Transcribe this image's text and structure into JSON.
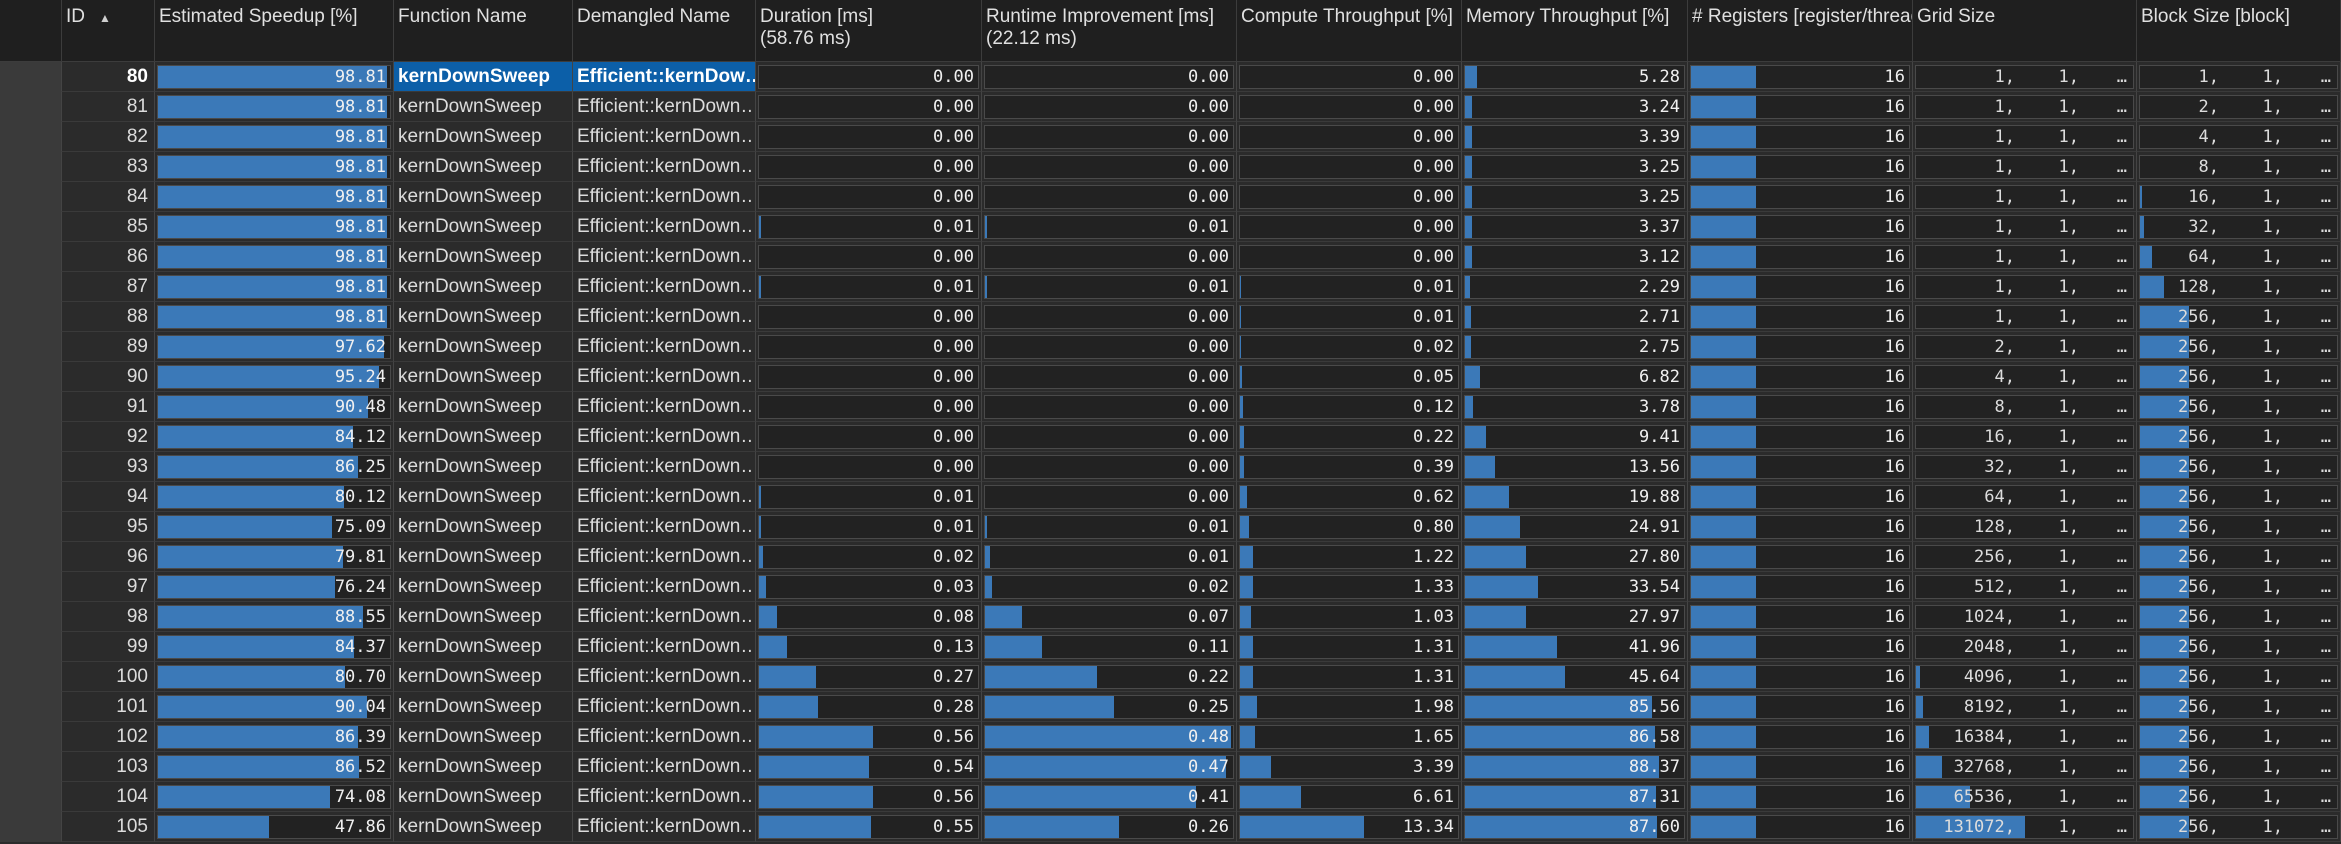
{
  "columns": [
    {
      "key": "id",
      "label": "ID"
    },
    {
      "key": "speedup",
      "label": "Estimated Speedup [%]"
    },
    {
      "key": "fname",
      "label": "Function Name"
    },
    {
      "key": "dname",
      "label": "Demangled Name"
    },
    {
      "key": "duration",
      "label": "Duration [ms]\n(58.76 ms)"
    },
    {
      "key": "runtime",
      "label": "Runtime Improvement [ms]\n(22.12 ms)"
    },
    {
      "key": "compute",
      "label": "Compute Throughput [%]"
    },
    {
      "key": "memory",
      "label": "Memory Throughput [%]"
    },
    {
      "key": "regs",
      "label": "# Registers [register/thread]"
    },
    {
      "key": "grid",
      "label": "Grid Size"
    },
    {
      "key": "block",
      "label": "Block Size [block]"
    }
  ],
  "sort_icon": "sort-ascending-icon",
  "accent": "#3b79b8",
  "selected_color": "#0c5fa8",
  "rows": [
    {
      "id": "80",
      "speedup": "98.81",
      "fname": "kernDownSweep",
      "dname": "Efficient::kernDow…",
      "duration": "0.00",
      "runtime": "0.00",
      "compute": "0.00",
      "memory": "5.28",
      "regs": "16",
      "grid": [
        "1,",
        "1,",
        "…"
      ],
      "block": [
        "1,",
        "1,",
        "…"
      ],
      "fill": {
        "speedup": 0.988,
        "duration": 0.0,
        "runtime": 0.0,
        "compute": 0.0,
        "memory": 0.053,
        "regs": 0.3,
        "grid": 0,
        "block": 0
      },
      "selected": true
    },
    {
      "id": "81",
      "speedup": "98.81",
      "fname": "kernDownSweep",
      "dname": "Efficient::kernDown…",
      "duration": "0.00",
      "runtime": "0.00",
      "compute": "0.00",
      "memory": "3.24",
      "regs": "16",
      "grid": [
        "1,",
        "1,",
        "…"
      ],
      "block": [
        "2,",
        "1,",
        "…"
      ],
      "fill": {
        "speedup": 0.988,
        "duration": 0.0,
        "runtime": 0.0,
        "compute": 0.0,
        "memory": 0.032,
        "regs": 0.3,
        "grid": 0,
        "block": 0
      }
    },
    {
      "id": "82",
      "speedup": "98.81",
      "fname": "kernDownSweep",
      "dname": "Efficient::kernDown…",
      "duration": "0.00",
      "runtime": "0.00",
      "compute": "0.00",
      "memory": "3.39",
      "regs": "16",
      "grid": [
        "1,",
        "1,",
        "…"
      ],
      "block": [
        "4,",
        "1,",
        "…"
      ],
      "fill": {
        "speedup": 0.988,
        "duration": 0.0,
        "runtime": 0.0,
        "compute": 0.0,
        "memory": 0.034,
        "regs": 0.3,
        "grid": 0,
        "block": 0
      }
    },
    {
      "id": "83",
      "speedup": "98.81",
      "fname": "kernDownSweep",
      "dname": "Efficient::kernDown…",
      "duration": "0.00",
      "runtime": "0.00",
      "compute": "0.00",
      "memory": "3.25",
      "regs": "16",
      "grid": [
        "1,",
        "1,",
        "…"
      ],
      "block": [
        "8,",
        "1,",
        "…"
      ],
      "fill": {
        "speedup": 0.988,
        "duration": 0.0,
        "runtime": 0.0,
        "compute": 0.0,
        "memory": 0.033,
        "regs": 0.3,
        "grid": 0,
        "block": 0
      }
    },
    {
      "id": "84",
      "speedup": "98.81",
      "fname": "kernDownSweep",
      "dname": "Efficient::kernDown…",
      "duration": "0.00",
      "runtime": "0.00",
      "compute": "0.00",
      "memory": "3.25",
      "regs": "16",
      "grid": [
        "1,",
        "1,",
        "…"
      ],
      "block": [
        "16,",
        "1,",
        "…"
      ],
      "fill": {
        "speedup": 0.988,
        "duration": 0.0,
        "runtime": 0.0,
        "compute": 0.0,
        "memory": 0.033,
        "regs": 0.3,
        "grid": 0,
        "block": 0.01
      }
    },
    {
      "id": "85",
      "speedup": "98.81",
      "fname": "kernDownSweep",
      "dname": "Efficient::kernDown…",
      "duration": "0.01",
      "runtime": "0.01",
      "compute": "0.00",
      "memory": "3.37",
      "regs": "16",
      "grid": [
        "1,",
        "1,",
        "…"
      ],
      "block": [
        "32,",
        "1,",
        "…"
      ],
      "fill": {
        "speedup": 0.988,
        "duration": 0.01,
        "runtime": 0.01,
        "compute": 0.0,
        "memory": 0.034,
        "regs": 0.3,
        "grid": 0,
        "block": 0.02
      }
    },
    {
      "id": "86",
      "speedup": "98.81",
      "fname": "kernDownSweep",
      "dname": "Efficient::kernDown…",
      "duration": "0.00",
      "runtime": "0.00",
      "compute": "0.00",
      "memory": "3.12",
      "regs": "16",
      "grid": [
        "1,",
        "1,",
        "…"
      ],
      "block": [
        "64,",
        "1,",
        "…"
      ],
      "fill": {
        "speedup": 0.988,
        "duration": 0.0,
        "runtime": 0.0,
        "compute": 0.0,
        "memory": 0.031,
        "regs": 0.3,
        "grid": 0,
        "block": 0.06
      }
    },
    {
      "id": "87",
      "speedup": "98.81",
      "fname": "kernDownSweep",
      "dname": "Efficient::kernDown…",
      "duration": "0.01",
      "runtime": "0.01",
      "compute": "0.01",
      "memory": "2.29",
      "regs": "16",
      "grid": [
        "1,",
        "1,",
        "…"
      ],
      "block": [
        "128,",
        "1,",
        "…"
      ],
      "fill": {
        "speedup": 0.988,
        "duration": 0.01,
        "runtime": 0.01,
        "compute": 0.005,
        "memory": 0.023,
        "regs": 0.3,
        "grid": 0,
        "block": 0.12
      }
    },
    {
      "id": "88",
      "speedup": "98.81",
      "fname": "kernDownSweep",
      "dname": "Efficient::kernDown…",
      "duration": "0.00",
      "runtime": "0.00",
      "compute": "0.01",
      "memory": "2.71",
      "regs": "16",
      "grid": [
        "1,",
        "1,",
        "…"
      ],
      "block": [
        "256,",
        "1,",
        "…"
      ],
      "fill": {
        "speedup": 0.988,
        "duration": 0.0,
        "runtime": 0.0,
        "compute": 0.005,
        "memory": 0.027,
        "regs": 0.3,
        "grid": 0,
        "block": 0.25
      }
    },
    {
      "id": "89",
      "speedup": "97.62",
      "fname": "kernDownSweep",
      "dname": "Efficient::kernDown…",
      "duration": "0.00",
      "runtime": "0.00",
      "compute": "0.02",
      "memory": "2.75",
      "regs": "16",
      "grid": [
        "2,",
        "1,",
        "…"
      ],
      "block": [
        "256,",
        "1,",
        "…"
      ],
      "fill": {
        "speedup": 0.976,
        "duration": 0.0,
        "runtime": 0.0,
        "compute": 0.006,
        "memory": 0.028,
        "regs": 0.3,
        "grid": 0,
        "block": 0.25
      }
    },
    {
      "id": "90",
      "speedup": "95.24",
      "fname": "kernDownSweep",
      "dname": "Efficient::kernDown…",
      "duration": "0.00",
      "runtime": "0.00",
      "compute": "0.05",
      "memory": "6.82",
      "regs": "16",
      "grid": [
        "4,",
        "1,",
        "…"
      ],
      "block": [
        "256,",
        "1,",
        "…"
      ],
      "fill": {
        "speedup": 0.952,
        "duration": 0.0,
        "runtime": 0.0,
        "compute": 0.008,
        "memory": 0.068,
        "regs": 0.3,
        "grid": 0,
        "block": 0.25
      }
    },
    {
      "id": "91",
      "speedup": "90.48",
      "fname": "kernDownSweep",
      "dname": "Efficient::kernDown…",
      "duration": "0.00",
      "runtime": "0.00",
      "compute": "0.12",
      "memory": "3.78",
      "regs": "16",
      "grid": [
        "8,",
        "1,",
        "…"
      ],
      "block": [
        "256,",
        "1,",
        "…"
      ],
      "fill": {
        "speedup": 0.905,
        "duration": 0.0,
        "runtime": 0.0,
        "compute": 0.012,
        "memory": 0.038,
        "regs": 0.3,
        "grid": 0,
        "block": 0.25
      }
    },
    {
      "id": "92",
      "speedup": "84.12",
      "fname": "kernDownSweep",
      "dname": "Efficient::kernDown…",
      "duration": "0.00",
      "runtime": "0.00",
      "compute": "0.22",
      "memory": "9.41",
      "regs": "16",
      "grid": [
        "16,",
        "1,",
        "…"
      ],
      "block": [
        "256,",
        "1,",
        "…"
      ],
      "fill": {
        "speedup": 0.841,
        "duration": 0.0,
        "runtime": 0.0,
        "compute": 0.017,
        "memory": 0.094,
        "regs": 0.3,
        "grid": 0,
        "block": 0.25
      }
    },
    {
      "id": "93",
      "speedup": "86.25",
      "fname": "kernDownSweep",
      "dname": "Efficient::kernDown…",
      "duration": "0.00",
      "runtime": "0.00",
      "compute": "0.39",
      "memory": "13.56",
      "regs": "16",
      "grid": [
        "32,",
        "1,",
        "…"
      ],
      "block": [
        "256,",
        "1,",
        "…"
      ],
      "fill": {
        "speedup": 0.862,
        "duration": 0.0,
        "runtime": 0.0,
        "compute": 0.02,
        "memory": 0.136,
        "regs": 0.3,
        "grid": 0,
        "block": 0.25
      }
    },
    {
      "id": "94",
      "speedup": "80.12",
      "fname": "kernDownSweep",
      "dname": "Efficient::kernDown…",
      "duration": "0.01",
      "runtime": "0.00",
      "compute": "0.62",
      "memory": "19.88",
      "regs": "16",
      "grid": [
        "64,",
        "1,",
        "…"
      ],
      "block": [
        "256,",
        "1,",
        "…"
      ],
      "fill": {
        "speedup": 0.801,
        "duration": 0.01,
        "runtime": 0.0,
        "compute": 0.03,
        "memory": 0.199,
        "regs": 0.3,
        "grid": 0,
        "block": 0.25
      }
    },
    {
      "id": "95",
      "speedup": "75.09",
      "fname": "kernDownSweep",
      "dname": "Efficient::kernDown…",
      "duration": "0.01",
      "runtime": "0.01",
      "compute": "0.80",
      "memory": "24.91",
      "regs": "16",
      "grid": [
        "128,",
        "1,",
        "…"
      ],
      "block": [
        "256,",
        "1,",
        "…"
      ],
      "fill": {
        "speedup": 0.751,
        "duration": 0.01,
        "runtime": 0.01,
        "compute": 0.04,
        "memory": 0.249,
        "regs": 0.3,
        "grid": 0,
        "block": 0.25
      }
    },
    {
      "id": "96",
      "speedup": "79.81",
      "fname": "kernDownSweep",
      "dname": "Efficient::kernDown…",
      "duration": "0.02",
      "runtime": "0.01",
      "compute": "1.22",
      "memory": "27.80",
      "regs": "16",
      "grid": [
        "256,",
        "1,",
        "…"
      ],
      "block": [
        "256,",
        "1,",
        "…"
      ],
      "fill": {
        "speedup": 0.798,
        "duration": 0.02,
        "runtime": 0.02,
        "compute": 0.06,
        "memory": 0.278,
        "regs": 0.3,
        "grid": 0,
        "block": 0.25
      }
    },
    {
      "id": "97",
      "speedup": "76.24",
      "fname": "kernDownSweep",
      "dname": "Efficient::kernDown…",
      "duration": "0.03",
      "runtime": "0.02",
      "compute": "1.33",
      "memory": "33.54",
      "regs": "16",
      "grid": [
        "512,",
        "1,",
        "…"
      ],
      "block": [
        "256,",
        "1,",
        "…"
      ],
      "fill": {
        "speedup": 0.762,
        "duration": 0.03,
        "runtime": 0.03,
        "compute": 0.06,
        "memory": 0.335,
        "regs": 0.3,
        "grid": 0,
        "block": 0.25
      }
    },
    {
      "id": "98",
      "speedup": "88.55",
      "fname": "kernDownSweep",
      "dname": "Efficient::kernDown…",
      "duration": "0.08",
      "runtime": "0.07",
      "compute": "1.03",
      "memory": "27.97",
      "regs": "16",
      "grid": [
        "1024,",
        "1,",
        "…"
      ],
      "block": [
        "256,",
        "1,",
        "…"
      ],
      "fill": {
        "speedup": 0.885,
        "duration": 0.08,
        "runtime": 0.15,
        "compute": 0.05,
        "memory": 0.28,
        "regs": 0.3,
        "grid": 0,
        "block": 0.25
      }
    },
    {
      "id": "99",
      "speedup": "84.37",
      "fname": "kernDownSweep",
      "dname": "Efficient::kernDown…",
      "duration": "0.13",
      "runtime": "0.11",
      "compute": "1.31",
      "memory": "41.96",
      "regs": "16",
      "grid": [
        "2048,",
        "1,",
        "…"
      ],
      "block": [
        "256,",
        "1,",
        "…"
      ],
      "fill": {
        "speedup": 0.843,
        "duration": 0.13,
        "runtime": 0.23,
        "compute": 0.06,
        "memory": 0.42,
        "regs": 0.3,
        "grid": 0,
        "block": 0.25
      }
    },
    {
      "id": "100",
      "speedup": "80.70",
      "fname": "kernDownSweep",
      "dname": "Efficient::kernDown…",
      "duration": "0.27",
      "runtime": "0.22",
      "compute": "1.31",
      "memory": "45.64",
      "regs": "16",
      "grid": [
        "4096,",
        "1,",
        "…"
      ],
      "block": [
        "256,",
        "1,",
        "…"
      ],
      "fill": {
        "speedup": 0.807,
        "duration": 0.26,
        "runtime": 0.45,
        "compute": 0.06,
        "memory": 0.456,
        "regs": 0.3,
        "grid": 0.02,
        "block": 0.25
      }
    },
    {
      "id": "101",
      "speedup": "90.04",
      "fname": "kernDownSweep",
      "dname": "Efficient::kernDown…",
      "duration": "0.28",
      "runtime": "0.25",
      "compute": "1.98",
      "memory": "85.56",
      "regs": "16",
      "grid": [
        "8192,",
        "1,",
        "…"
      ],
      "block": [
        "256,",
        "1,",
        "…"
      ],
      "fill": {
        "speedup": 0.9,
        "duration": 0.27,
        "runtime": 0.52,
        "compute": 0.08,
        "memory": 0.855,
        "regs": 0.3,
        "grid": 0.03,
        "block": 0.25
      }
    },
    {
      "id": "102",
      "speedup": "86.39",
      "fname": "kernDownSweep",
      "dname": "Efficient::kernDown…",
      "duration": "0.56",
      "runtime": "0.48",
      "compute": "1.65",
      "memory": "86.58",
      "regs": "16",
      "grid": [
        "16384,",
        "1,",
        "…"
      ],
      "block": [
        "256,",
        "1,",
        "…"
      ],
      "fill": {
        "speedup": 0.864,
        "duration": 0.52,
        "runtime": 0.99,
        "compute": 0.07,
        "memory": 0.866,
        "regs": 0.3,
        "grid": 0.06,
        "block": 0.25
      }
    },
    {
      "id": "103",
      "speedup": "86.52",
      "fname": "kernDownSweep",
      "dname": "Efficient::kernDown…",
      "duration": "0.54",
      "runtime": "0.47",
      "compute": "3.39",
      "memory": "88.37",
      "regs": "16",
      "grid": [
        "32768,",
        "1,",
        "…"
      ],
      "block": [
        "256,",
        "1,",
        "…"
      ],
      "fill": {
        "speedup": 0.865,
        "duration": 0.5,
        "runtime": 0.97,
        "compute": 0.14,
        "memory": 0.884,
        "regs": 0.3,
        "grid": 0.12,
        "block": 0.25
      }
    },
    {
      "id": "104",
      "speedup": "74.08",
      "fname": "kernDownSweep",
      "dname": "Efficient::kernDown…",
      "duration": "0.56",
      "runtime": "0.41",
      "compute": "6.61",
      "memory": "87.31",
      "regs": "16",
      "grid": [
        "65536,",
        "1,",
        "…"
      ],
      "block": [
        "256,",
        "1,",
        "…"
      ],
      "fill": {
        "speedup": 0.741,
        "duration": 0.52,
        "runtime": 0.85,
        "compute": 0.28,
        "memory": 0.873,
        "regs": 0.3,
        "grid": 0.25,
        "block": 0.25
      }
    },
    {
      "id": "105",
      "speedup": "47.86",
      "fname": "kernDownSweep",
      "dname": "Efficient::kernDown…",
      "duration": "0.55",
      "runtime": "0.26",
      "compute": "13.34",
      "memory": "87.60",
      "regs": "16",
      "grid": [
        "131072,",
        "1,",
        "…"
      ],
      "block": [
        "256,",
        "1,",
        "…"
      ],
      "fill": {
        "speedup": 0.479,
        "duration": 0.51,
        "runtime": 0.54,
        "compute": 0.57,
        "memory": 0.876,
        "regs": 0.3,
        "grid": 0.5,
        "block": 0.25
      }
    }
  ]
}
